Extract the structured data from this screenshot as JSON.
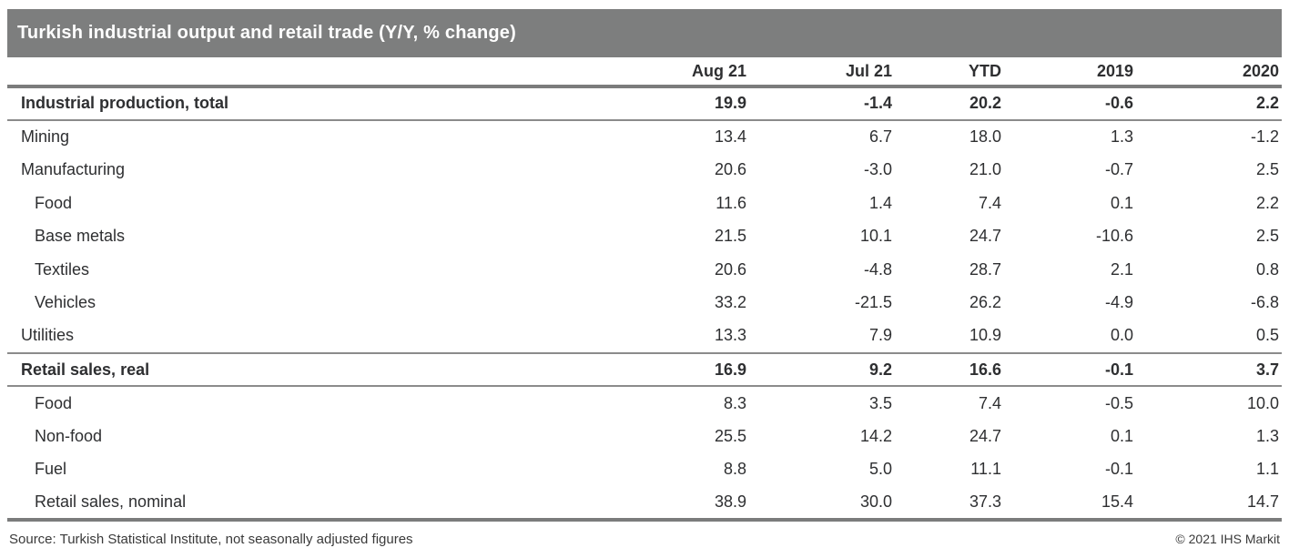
{
  "title": "Turkish industrial output and retail trade (Y/Y, % change)",
  "colors": {
    "title_bar_bg": "#7d7e7e",
    "title_text": "#ffffff",
    "table_text": "#2e2f31",
    "rule_heavy": "#7b7c7c",
    "rule_light": "#8b8b8b"
  },
  "chart_data": {
    "type": "table",
    "title": "Turkish industrial output and retail trade (Y/Y, % change)",
    "columns": [
      "",
      "Aug 21",
      "Jul 21",
      "YTD",
      "2019",
      "2020"
    ],
    "rows": [
      {
        "label": "Industrial production, total",
        "kind": "section",
        "values": [
          "19.9",
          "-1.4",
          "20.2",
          "-0.6",
          "2.2"
        ]
      },
      {
        "label": "Mining",
        "kind": "item",
        "values": [
          "13.4",
          "6.7",
          "18.0",
          "1.3",
          "-1.2"
        ]
      },
      {
        "label": "Manufacturing",
        "kind": "item",
        "values": [
          "20.6",
          "-3.0",
          "21.0",
          "-0.7",
          "2.5"
        ]
      },
      {
        "label": "Food",
        "kind": "subitem",
        "values": [
          "11.6",
          "1.4",
          "7.4",
          "0.1",
          "2.2"
        ]
      },
      {
        "label": "Base metals",
        "kind": "subitem",
        "values": [
          "21.5",
          "10.1",
          "24.7",
          "-10.6",
          "2.5"
        ]
      },
      {
        "label": "Textiles",
        "kind": "subitem",
        "values": [
          "20.6",
          "-4.8",
          "28.7",
          "2.1",
          "0.8"
        ]
      },
      {
        "label": "Vehicles",
        "kind": "subitem",
        "values": [
          "33.2",
          "-21.5",
          "26.2",
          "-4.9",
          "-6.8"
        ]
      },
      {
        "label": "Utilities",
        "kind": "item",
        "values": [
          "13.3",
          "7.9",
          "10.9",
          "0.0",
          "0.5"
        ]
      },
      {
        "label": "Retail sales, real",
        "kind": "section",
        "values": [
          "16.9",
          "9.2",
          "16.6",
          "-0.1",
          "3.7"
        ]
      },
      {
        "label": "Food",
        "kind": "subitem",
        "values": [
          "8.3",
          "3.5",
          "7.4",
          "-0.5",
          "10.0"
        ]
      },
      {
        "label": "Non-food",
        "kind": "subitem",
        "values": [
          "25.5",
          "14.2",
          "24.7",
          "0.1",
          "1.3"
        ]
      },
      {
        "label": "Fuel",
        "kind": "subitem",
        "values": [
          "8.8",
          "5.0",
          "11.1",
          "-0.1",
          "1.1"
        ]
      },
      {
        "label": "Retail sales, nominal",
        "kind": "subitem",
        "values": [
          "38.9",
          "30.0",
          "37.3",
          "15.4",
          "14.7"
        ]
      }
    ]
  },
  "footer": {
    "source": "Source: Turkish Statistical Institute, not seasonally adjusted figures",
    "copyright": "© 2021 IHS Markit"
  }
}
